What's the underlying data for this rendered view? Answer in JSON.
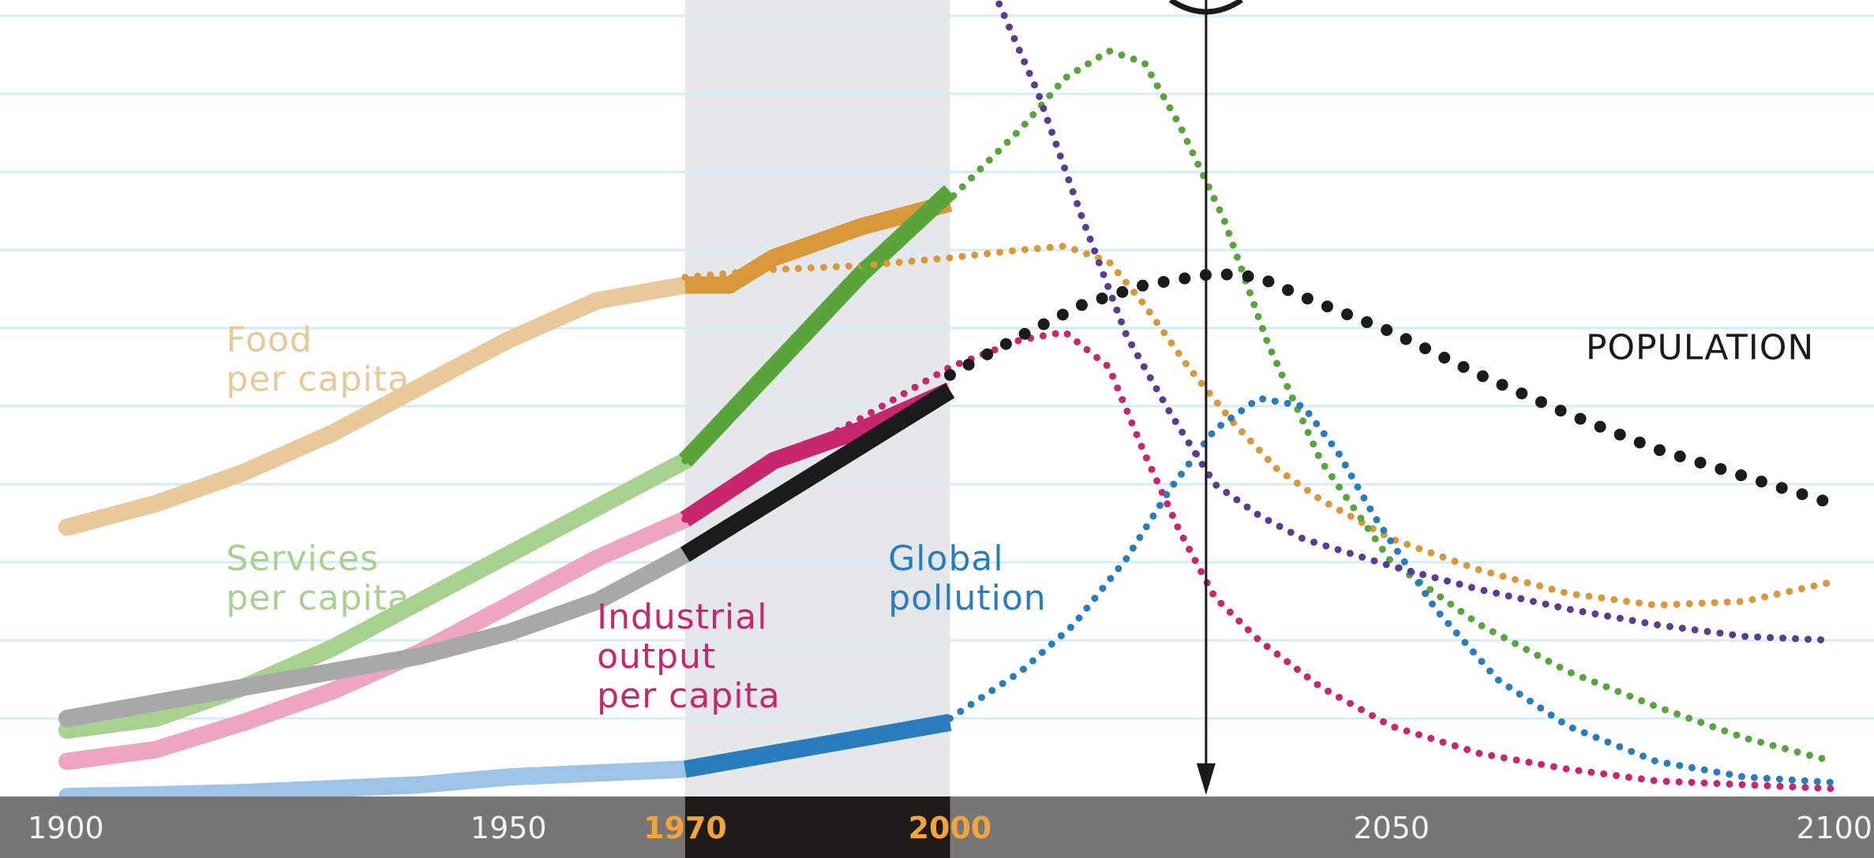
{
  "colors": {
    "food": "#d9983a",
    "food_hist": "#e9c99a",
    "services": "#5aa53b",
    "services_hist": "#a8d190",
    "industrial": "#c8266e",
    "industrial_hist": "#eda5c3",
    "pollution": "#2a7dbd",
    "pollution_hist": "#9dc4e6",
    "population": "#1b1b1b",
    "population_hist": "#a8a8a8",
    "resources": "#5b3c8f",
    "gridline": "#d3ecf9",
    "band": "#e5e7ea",
    "axis_bar": "#767676",
    "axis_bar_dark": "#1f1a18",
    "tick_text": "#f3f3f3",
    "tick_highlight": "#f0a43c",
    "arrow": "#1a1a1a"
  },
  "chart_data": {
    "type": "line",
    "title": "",
    "xlabel": "",
    "ylabel": "",
    "xlim": [
      1900,
      2100
    ],
    "ylim": [
      0,
      10
    ],
    "grid": true,
    "highlight_period": [
      1970,
      2000
    ],
    "marker_year": 2029,
    "x_ticks": [
      {
        "year": 1900,
        "label": "1900",
        "highlight": false
      },
      {
        "year": 1950,
        "label": "1950",
        "highlight": false
      },
      {
        "year": 1970,
        "label": "1970",
        "highlight": true
      },
      {
        "year": 2000,
        "label": "2000",
        "highlight": true
      },
      {
        "year": 2050,
        "label": "2050",
        "highlight": false
      },
      {
        "year": 2100,
        "label": "2100",
        "highlight": false
      }
    ],
    "series": [
      {
        "key": "food",
        "name": "Food per capita",
        "label_lines": [
          "Food",
          "per capita"
        ],
        "label_at": [
          1918,
          5.7
        ],
        "label_color": "food_hist",
        "historical": [
          [
            1900,
            3.45
          ],
          [
            1910,
            3.75
          ],
          [
            1920,
            4.15
          ],
          [
            1930,
            4.65
          ],
          [
            1940,
            5.25
          ],
          [
            1950,
            5.85
          ],
          [
            1960,
            6.35
          ],
          [
            1970,
            6.55
          ],
          [
            1975,
            6.55
          ],
          [
            1980,
            6.9
          ],
          [
            1990,
            7.3
          ],
          [
            2000,
            7.6
          ]
        ],
        "projection": [
          [
            1970,
            6.65
          ],
          [
            1980,
            6.75
          ],
          [
            1990,
            6.8
          ],
          [
            2000,
            6.9
          ],
          [
            2008,
            7.0
          ],
          [
            2013,
            7.05
          ],
          [
            2018,
            6.85
          ],
          [
            2022,
            6.3
          ],
          [
            2027,
            5.5
          ],
          [
            2032,
            4.8
          ],
          [
            2037,
            4.2
          ],
          [
            2042,
            3.8
          ],
          [
            2050,
            3.3
          ],
          [
            2060,
            2.9
          ],
          [
            2070,
            2.6
          ],
          [
            2080,
            2.45
          ],
          [
            2090,
            2.5
          ],
          [
            2100,
            2.75
          ]
        ]
      },
      {
        "key": "services",
        "name": "Services per capita",
        "label_lines": [
          "Services",
          "per capita"
        ],
        "label_at": [
          1918,
          2.9
        ],
        "label_color": "services_hist",
        "historical": [
          [
            1900,
            0.85
          ],
          [
            1910,
            1.0
          ],
          [
            1920,
            1.4
          ],
          [
            1930,
            1.9
          ],
          [
            1940,
            2.5
          ],
          [
            1950,
            3.1
          ],
          [
            1960,
            3.7
          ],
          [
            1970,
            4.3
          ],
          [
            1980,
            5.5
          ],
          [
            1990,
            6.7
          ],
          [
            2000,
            7.75
          ]
        ],
        "projection": [
          [
            1970,
            4.3
          ],
          [
            1980,
            5.6
          ],
          [
            1990,
            6.8
          ],
          [
            2000,
            7.65
          ],
          [
            2008,
            8.55
          ],
          [
            2013,
            9.2
          ],
          [
            2018,
            9.55
          ],
          [
            2022,
            9.4
          ],
          [
            2026,
            8.6
          ],
          [
            2031,
            7.4
          ],
          [
            2036,
            5.8
          ],
          [
            2042,
            4.3
          ],
          [
            2050,
            3.0
          ],
          [
            2060,
            2.2
          ],
          [
            2070,
            1.6
          ],
          [
            2080,
            1.15
          ],
          [
            2090,
            0.75
          ],
          [
            2100,
            0.45
          ]
        ]
      },
      {
        "key": "industrial",
        "name": "Industrial output per capita",
        "label_lines": [
          "Industrial",
          "output",
          "per capita"
        ],
        "label_at": [
          1960,
          2.15
        ],
        "label_color": "industrial",
        "historical": [
          [
            1900,
            0.45
          ],
          [
            1910,
            0.6
          ],
          [
            1920,
            0.95
          ],
          [
            1930,
            1.35
          ],
          [
            1940,
            1.85
          ],
          [
            1950,
            2.45
          ],
          [
            1960,
            3.05
          ],
          [
            1970,
            3.55
          ],
          [
            1980,
            4.3
          ],
          [
            1985,
            4.5
          ],
          [
            1990,
            4.7
          ],
          [
            2000,
            5.2
          ]
        ],
        "projection": [
          [
            1970,
            3.55
          ],
          [
            1980,
            4.25
          ],
          [
            1990,
            4.85
          ],
          [
            2000,
            5.5
          ],
          [
            2008,
            5.85
          ],
          [
            2013,
            5.95
          ],
          [
            2018,
            5.5
          ],
          [
            2022,
            4.4
          ],
          [
            2026,
            3.4
          ],
          [
            2030,
            2.55
          ],
          [
            2035,
            2.0
          ],
          [
            2042,
            1.4
          ],
          [
            2050,
            0.9
          ],
          [
            2060,
            0.55
          ],
          [
            2070,
            0.35
          ],
          [
            2080,
            0.2
          ],
          [
            2090,
            0.15
          ],
          [
            2100,
            0.1
          ]
        ]
      },
      {
        "key": "pollution",
        "name": "Global pollution",
        "label_lines": [
          "Global",
          "pollution"
        ],
        "label_at": [
          1993,
          2.9
        ],
        "label_color": "pollution",
        "historical": [
          [
            1900,
            0.0
          ],
          [
            1910,
            0.02
          ],
          [
            1920,
            0.05
          ],
          [
            1930,
            0.1
          ],
          [
            1940,
            0.15
          ],
          [
            1950,
            0.25
          ],
          [
            1960,
            0.3
          ],
          [
            1970,
            0.35
          ],
          [
            1980,
            0.55
          ],
          [
            1990,
            0.75
          ],
          [
            2000,
            0.95
          ]
        ],
        "projection": [
          [
            2000,
            1.0
          ],
          [
            2008,
            1.6
          ],
          [
            2014,
            2.2
          ],
          [
            2020,
            3.05
          ],
          [
            2025,
            3.95
          ],
          [
            2030,
            4.7
          ],
          [
            2035,
            5.1
          ],
          [
            2040,
            5.0
          ],
          [
            2044,
            4.4
          ],
          [
            2048,
            3.6
          ],
          [
            2055,
            2.4
          ],
          [
            2062,
            1.5
          ],
          [
            2070,
            0.9
          ],
          [
            2080,
            0.45
          ],
          [
            2090,
            0.25
          ],
          [
            2100,
            0.18
          ]
        ]
      },
      {
        "key": "population",
        "name": "POPULATION",
        "label_lines": [
          "POPULATION"
        ],
        "label_at": [
          2072,
          5.6
        ],
        "label_color": "population",
        "historical": [
          [
            1900,
            1.0
          ],
          [
            1910,
            1.2
          ],
          [
            1920,
            1.4
          ],
          [
            1930,
            1.6
          ],
          [
            1940,
            1.8
          ],
          [
            1950,
            2.1
          ],
          [
            1960,
            2.5
          ],
          [
            1970,
            3.1
          ],
          [
            1980,
            3.8
          ],
          [
            1990,
            4.5
          ],
          [
            2000,
            5.2
          ]
        ],
        "projection": [
          [
            2000,
            5.4
          ],
          [
            2008,
            5.9
          ],
          [
            2015,
            6.3
          ],
          [
            2022,
            6.55
          ],
          [
            2030,
            6.7
          ],
          [
            2035,
            6.65
          ],
          [
            2040,
            6.4
          ],
          [
            2050,
            5.95
          ],
          [
            2060,
            5.4
          ],
          [
            2070,
            4.9
          ],
          [
            2080,
            4.45
          ],
          [
            2090,
            4.1
          ],
          [
            2100,
            3.75
          ]
        ]
      },
      {
        "key": "resources",
        "name": "",
        "label_lines": [],
        "label_at": null,
        "label_color": "resources",
        "historical": [],
        "projection": [
          [
            2005,
            10.3
          ],
          [
            2010,
            9.0
          ],
          [
            2015,
            7.4
          ],
          [
            2020,
            5.9
          ],
          [
            2025,
            4.9
          ],
          [
            2030,
            4.0
          ],
          [
            2035,
            3.6
          ],
          [
            2040,
            3.3
          ],
          [
            2050,
            2.95
          ],
          [
            2060,
            2.65
          ],
          [
            2070,
            2.4
          ],
          [
            2080,
            2.2
          ],
          [
            2090,
            2.05
          ],
          [
            2100,
            2.0
          ]
        ]
      }
    ]
  }
}
